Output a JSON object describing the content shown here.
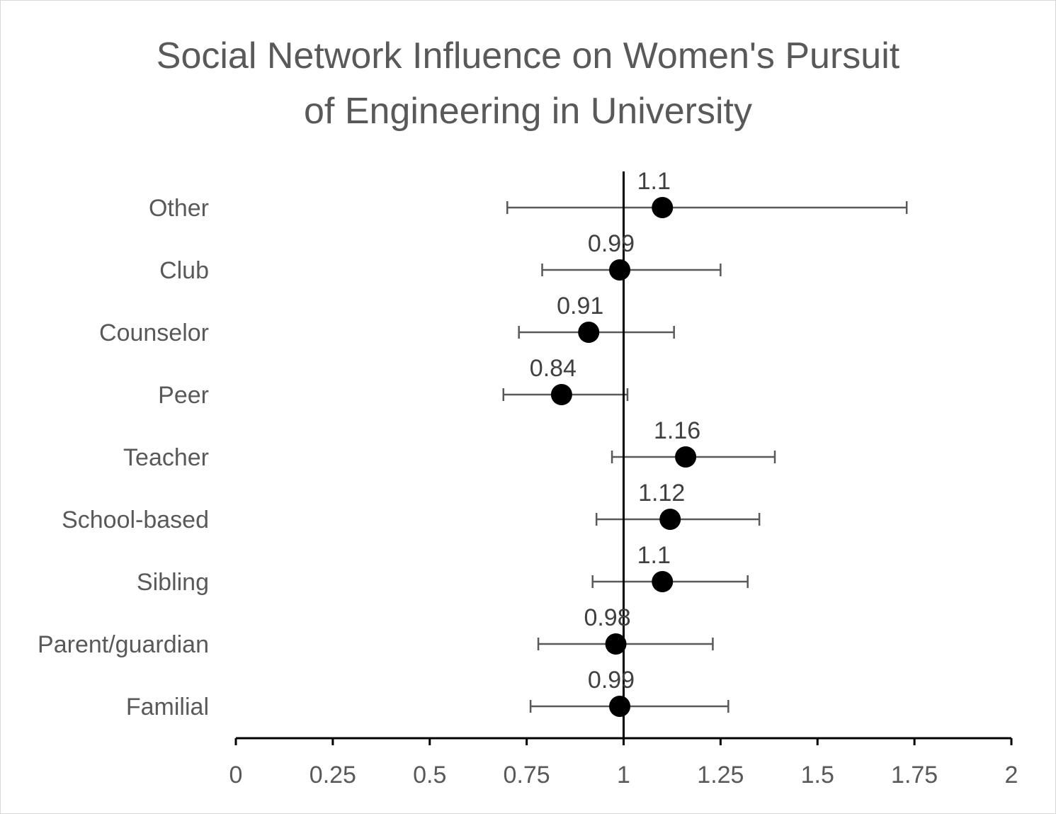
{
  "chart_data": {
    "type": "scatter",
    "title_lines": [
      "Social Network Influence on Women's Pursuit",
      "of Engineering in University"
    ],
    "categories": [
      "Other",
      "Club",
      "Counselor",
      "Peer",
      "Teacher",
      "School-based",
      "Sibling",
      "Parent/guardian",
      "Familial"
    ],
    "values": [
      1.1,
      0.99,
      0.91,
      0.84,
      1.16,
      1.12,
      1.1,
      0.98,
      0.99
    ],
    "data_labels": [
      "1.1",
      "0.99",
      "0.91",
      "0.84",
      "1.16",
      "1.12",
      "1.1",
      "0.98",
      "0.99"
    ],
    "ci_low": [
      0.7,
      0.79,
      0.73,
      0.69,
      0.97,
      0.93,
      0.92,
      0.78,
      0.76
    ],
    "ci_high": [
      1.73,
      1.25,
      1.13,
      1.01,
      1.39,
      1.35,
      1.32,
      1.23,
      1.27
    ],
    "reference_line": 1,
    "xlim": [
      0,
      2
    ],
    "xticks": [
      "0",
      "0.25",
      "0.5",
      "0.75",
      "1",
      "1.25",
      "1.5",
      "1.75",
      "2"
    ],
    "xlabel": "",
    "ylabel": "",
    "grid": false,
    "legend": "none",
    "colors": {
      "marker": "#000000",
      "errorbar": "#595959",
      "axis": "#000000",
      "text": "#595959",
      "data_label": "#404040"
    }
  }
}
